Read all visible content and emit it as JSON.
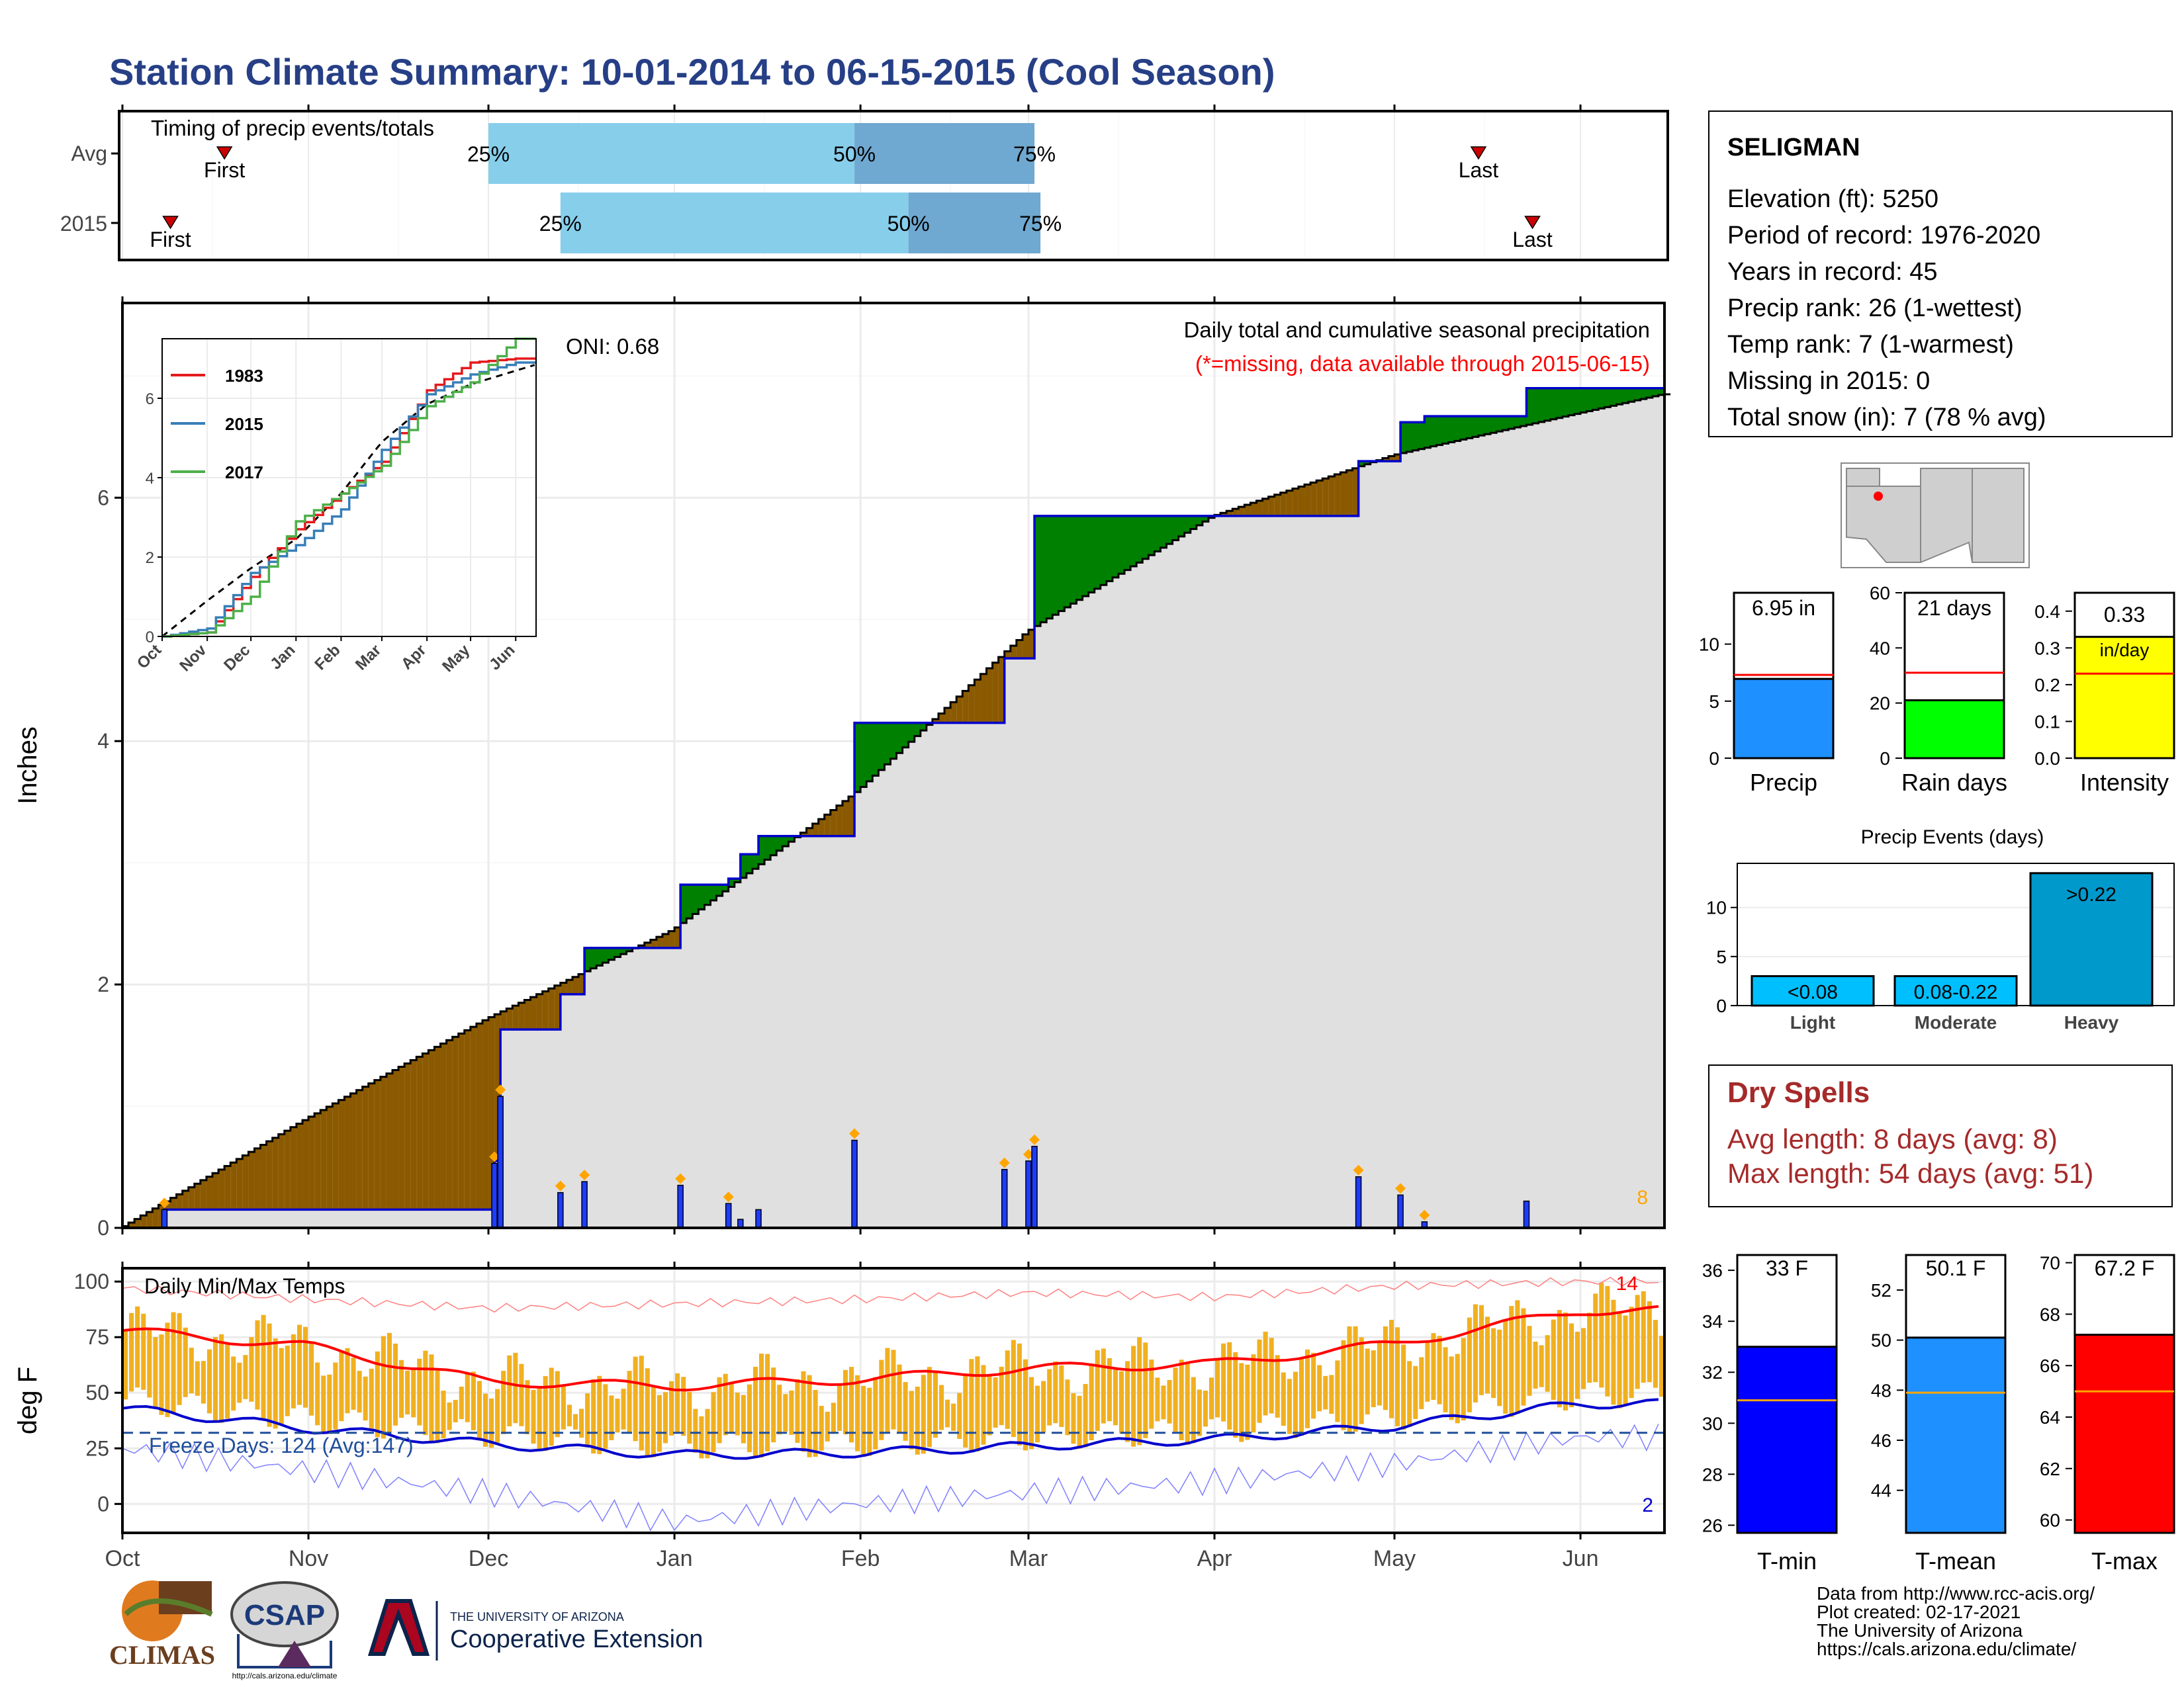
{
  "title": "Station Climate Summary: 10-01-2014 to 06-15-2015 (Cool Season)",
  "timing": {
    "label": "Timing of precip events/totals",
    "rows": [
      {
        "name": "Avg",
        "first": "2014-10-18",
        "q25": "2014-12-01",
        "q50": "2015-01-31",
        "q75": "2015-03-02",
        "last": "2015-05-15"
      },
      {
        "name": "2015",
        "first": "2014-10-09",
        "q25": "2014-12-13",
        "q50": "2015-02-09",
        "q75": "2015-03-03",
        "last": "2015-05-24"
      }
    ],
    "first_label": "First",
    "last_label": "Last",
    "q25_label": "25%",
    "q50_label": "50%",
    "q75_label": "75%"
  },
  "station": {
    "name": "SELIGMAN",
    "lines": [
      "Elevation (ft): 5250",
      "Period of record: 1976-2020",
      "Years in record: 45",
      "Precip rank: 26 (1-wettest)",
      "Temp rank: 7 (1-warmest)",
      "Missing in 2015: 0",
      "Total snow (in): 7 (78 % avg)"
    ]
  },
  "main_precip": {
    "ylabel": "Inches",
    "oni": "ONI: 0.68",
    "caption": "Daily total and cumulative seasonal precipitation",
    "missing_note": "(*=missing, data available through 2015-06-15)",
    "missing_count": "8",
    "yticks": [
      "0",
      "2",
      "4",
      "6"
    ],
    "colors": {
      "cumulative": "#0000cc",
      "avg_fill": "#e0e0e0",
      "dry": "#8b5a00",
      "wet": "#008000",
      "daily": "#1e3cff",
      "missing": "#ffa500"
    }
  },
  "inset": {
    "yticks": [
      "0",
      "2",
      "4",
      "6"
    ],
    "xticks": [
      "Oct",
      "Nov",
      "Dec",
      "Jan",
      "Feb",
      "Mar",
      "Apr",
      "May",
      "Jun"
    ],
    "legend": [
      {
        "name": "1983",
        "color": "#e41a1c"
      },
      {
        "name": "2015",
        "color": "#377eb8"
      },
      {
        "name": "2017",
        "color": "#4daf4a"
      }
    ]
  },
  "temps": {
    "label": "Daily Min/Max Temps",
    "ylabel": "deg F",
    "freeze_label": "Freeze Days: 124 (Avg:147)",
    "count_high": "14",
    "count_low": "2",
    "yticks": [
      "0",
      "25",
      "50",
      "75",
      "100"
    ]
  },
  "xaxis": {
    "ticks": [
      "Oct",
      "Nov",
      "Dec",
      "Jan",
      "Feb",
      "Mar",
      "Apr",
      "May",
      "Jun"
    ]
  },
  "chart_data": [
    {
      "type": "line",
      "title": "Daily total and cumulative seasonal precipitation",
      "ylabel": "Inches",
      "ylim": [
        0,
        7.6
      ],
      "series": [
        {
          "name": "cumulative 2015",
          "x": [
            "2014-10-01",
            "2014-10-08",
            "2014-12-01",
            "2014-12-02",
            "2014-12-03",
            "2014-12-12",
            "2014-12-13",
            "2014-12-16",
            "2014-12-17",
            "2015-01-01",
            "2015-01-02",
            "2015-01-09",
            "2015-01-10",
            "2015-01-11",
            "2015-01-12",
            "2015-01-14",
            "2015-01-15",
            "2015-01-30",
            "2015-01-31",
            "2015-02-24",
            "2015-02-25",
            "2015-03-01",
            "2015-03-02",
            "2015-04-24",
            "2015-04-25",
            "2015-05-01",
            "2015-05-02",
            "2015-05-05",
            "2015-05-06",
            "2015-05-22",
            "2015-05-23",
            "2015-06-15"
          ],
          "y": [
            0,
            0.15,
            0.15,
            0.55,
            1.63,
            1.63,
            1.92,
            1.92,
            2.3,
            2.3,
            2.82,
            2.82,
            2.87,
            2.87,
            3.07,
            3.07,
            3.22,
            3.22,
            4.15,
            4.15,
            4.68,
            4.68,
            5.85,
            5.85,
            6.3,
            6.3,
            6.62,
            6.62,
            6.67,
            6.67,
            6.9,
            6.9
          ]
        },
        {
          "name": "cumulative avg",
          "x": [
            "2014-10-01",
            "2014-11-01",
            "2014-12-01",
            "2015-01-01",
            "2015-02-01",
            "2015-03-01",
            "2015-04-01",
            "2015-05-01",
            "2015-06-15"
          ],
          "y": [
            0,
            0.9,
            1.72,
            2.45,
            3.6,
            4.9,
            5.85,
            6.35,
            6.85
          ]
        },
        {
          "name": "daily",
          "x": [
            "2014-10-08",
            "2014-12-02",
            "2014-12-03",
            "2014-12-13",
            "2014-12-17",
            "2015-01-02",
            "2015-01-10",
            "2015-01-12",
            "2015-01-15",
            "2015-01-31",
            "2015-02-25",
            "2015-03-01",
            "2015-03-02",
            "2015-04-25",
            "2015-05-02",
            "2015-05-06",
            "2015-05-23"
          ],
          "y": [
            0.15,
            0.53,
            1.08,
            0.29,
            0.38,
            0.35,
            0.2,
            0.07,
            0.15,
            0.72,
            0.48,
            0.55,
            0.67,
            0.42,
            0.27,
            0.05,
            0.22
          ]
        }
      ]
    },
    {
      "type": "line",
      "ylim": [
        0,
        7.5
      ],
      "x": [
        "Oct",
        "Nov",
        "Dec",
        "Jan",
        "Feb",
        "Mar",
        "Apr",
        "May",
        "Jun"
      ],
      "series": [
        {
          "name": "1983",
          "values": [
            0,
            0.1,
            1.5,
            2.7,
            3.6,
            4.4,
            6.2,
            6.9,
            7.0
          ]
        },
        {
          "name": "2015",
          "values": [
            0,
            0.2,
            1.6,
            2.3,
            3.2,
            4.7,
            6.1,
            6.6,
            6.9
          ]
        },
        {
          "name": "2017",
          "values": [
            0,
            0.1,
            1.0,
            2.9,
            3.6,
            4.3,
            5.8,
            6.4,
            7.5
          ]
        }
      ]
    },
    {
      "type": "bar",
      "categories": [
        "Precip",
        "Rain days",
        "Intensity"
      ],
      "values": [
        6.95,
        21,
        0.33
      ],
      "labels": [
        "6.95 in",
        "21 days",
        "0.33 in/day"
      ],
      "averages": [
        7.3,
        31,
        0.23
      ],
      "ylims": [
        [
          0,
          14.5
        ],
        [
          0,
          60
        ],
        [
          0,
          0.45
        ]
      ],
      "colors": [
        "#1e90ff",
        "#00ff00",
        "#ffff00"
      ]
    },
    {
      "type": "bar",
      "title": "Precip Events (days)",
      "categories": [
        "Light",
        "Moderate",
        "Heavy"
      ],
      "labels": [
        "<0.08",
        "0.08-0.22",
        ">0.22"
      ],
      "values": [
        3,
        3,
        13.5
      ],
      "ylim": [
        0,
        14.5
      ]
    },
    {
      "type": "bar",
      "categories": [
        "T-min",
        "T-mean",
        "T-max"
      ],
      "values": [
        33,
        50.1,
        67.2
      ],
      "labels": [
        "33 F",
        "50.1 F",
        "67.2 F"
      ],
      "averages": [
        30.9,
        47.9,
        65.0
      ],
      "ylims": [
        [
          25.7,
          36.6
        ],
        [
          42.3,
          53.4
        ],
        [
          59.5,
          70.3
        ]
      ],
      "yticks": [
        [
          "26",
          "28",
          "30",
          "32",
          "34",
          "36"
        ],
        [
          "44",
          "46",
          "48",
          "50",
          "52"
        ],
        [
          "60",
          "62",
          "64",
          "66",
          "68",
          "70"
        ]
      ],
      "colors": [
        "#0000ff",
        "#1e90ff",
        "#ff0000"
      ]
    },
    {
      "type": "line",
      "title": "Daily Min/Max Temps",
      "ylabel": "deg F",
      "ylim": [
        -13,
        106
      ],
      "x": [
        "Oct",
        "Nov",
        "Dec",
        "Jan",
        "Feb",
        "Mar",
        "Apr",
        "May",
        "Jun"
      ],
      "series": [
        {
          "name": "avg max",
          "values": [
            78,
            71,
            55,
            53,
            56,
            61,
            63,
            72,
            87
          ]
        },
        {
          "name": "avg min",
          "values": [
            43,
            34,
            27,
            22,
            23,
            26,
            29,
            35,
            45
          ]
        },
        {
          "name": "record high",
          "values": [
            97,
            92,
            88,
            90,
            92,
            95,
            93,
            98,
            100
          ]
        },
        {
          "name": "record low",
          "values": [
            25,
            15,
            5,
            -8,
            0,
            5,
            10,
            18,
            30
          ]
        }
      ]
    }
  ],
  "small_bars": {
    "precip_label": "Precip",
    "precip_value": "6.95 in",
    "precip_yticks": [
      "0",
      "5",
      "10"
    ],
    "rain_label": "Rain days",
    "rain_value": "21 days",
    "rain_yticks": [
      "0",
      "20",
      "40",
      "60"
    ],
    "int_label": "Intensity",
    "int_value": "0.33",
    "int_unit": "in/day",
    "int_yticks": [
      "0.0",
      "0.1",
      "0.2",
      "0.3",
      "0.4"
    ]
  },
  "events": {
    "title": "Precip Events (days)",
    "yticks": [
      "0",
      "5",
      "10"
    ],
    "bars": [
      {
        "label": "<0.08",
        "cat": "Light"
      },
      {
        "label": "0.08-0.22",
        "cat": "Moderate"
      },
      {
        "label": ">0.22",
        "cat": "Heavy"
      }
    ]
  },
  "dry_spells": {
    "title": "Dry Spells",
    "avg": "Avg length: 8 days (avg: 8)",
    "max": "Max length: 54 days (avg: 51)"
  },
  "temp_bars": {
    "items": [
      {
        "label": "T-min",
        "value": "33 F"
      },
      {
        "label": "T-mean",
        "value": "50.1 F"
      },
      {
        "label": "T-max",
        "value": "67.2 F"
      }
    ]
  },
  "credits": [
    "Data from http://www.rcc-acis.org/",
    "Plot created: 02-17-2021",
    "The University of Arizona",
    "https://cals.arizona.edu/climate/"
  ],
  "logos": {
    "climas": "CLIMAS",
    "csap": "CSAP",
    "csap_url": "http://cals.arizona.edu/climate",
    "ua_top": "THE UNIVERSITY OF ARIZONA",
    "ua_bottom": "Cooperative Extension"
  }
}
